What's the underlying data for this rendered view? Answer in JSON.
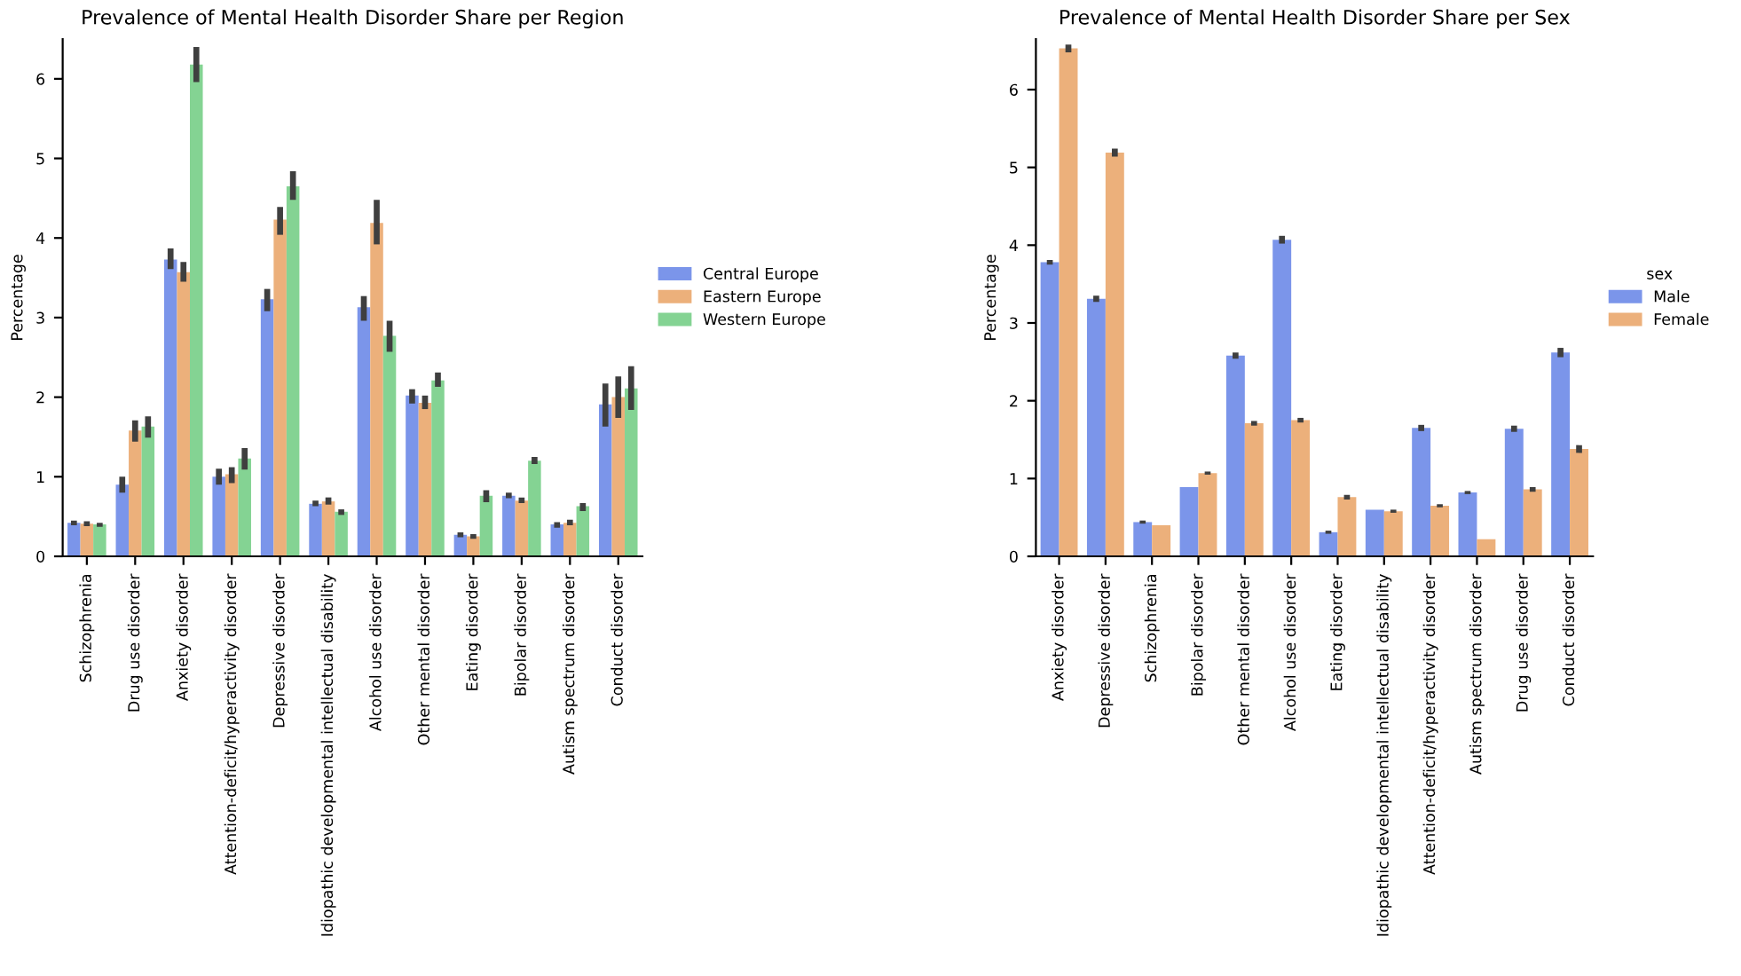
{
  "chart_data": [
    {
      "type": "bar",
      "title": "Prevalence of Mental Health Disorder Share per Region",
      "ylabel": "Percentage",
      "categories": [
        "Schizophrenia",
        "Drug use disorder",
        "Anxiety disorder",
        "Attention-deficit/hyperactivity disorder",
        "Depressive disorder",
        "Idiopathic developmental intellectual disability",
        "Alcohol use disorder",
        "Other mental disorder",
        "Eating disorder",
        "Bipolar disorder",
        "Autism spectrum disorder",
        "Conduct disorder"
      ],
      "series": [
        {
          "name": "Central Europe",
          "color": "#7b95ea",
          "values": [
            0.42,
            0.9,
            3.73,
            1.0,
            3.23,
            0.66,
            3.13,
            2.02,
            0.27,
            0.76,
            0.4,
            1.91
          ],
          "errors": [
            [
              0.39,
              0.45
            ],
            [
              0.8,
              1.0
            ],
            [
              3.61,
              3.87
            ],
            [
              0.9,
              1.1
            ],
            [
              3.08,
              3.36
            ],
            [
              0.63,
              0.7
            ],
            [
              2.96,
              3.27
            ],
            [
              1.92,
              2.1
            ],
            [
              0.24,
              0.3
            ],
            [
              0.73,
              0.8
            ],
            [
              0.36,
              0.43
            ],
            [
              1.63,
              2.17
            ]
          ]
        },
        {
          "name": "Eastern Europe",
          "color": "#ecb07b",
          "values": [
            0.41,
            1.58,
            3.57,
            1.03,
            4.23,
            0.69,
            4.19,
            1.93,
            0.25,
            0.7,
            0.42,
            2.0
          ],
          "errors": [
            [
              0.38,
              0.44
            ],
            [
              1.44,
              1.71
            ],
            [
              3.45,
              3.7
            ],
            [
              0.92,
              1.12
            ],
            [
              4.04,
              4.39
            ],
            [
              0.65,
              0.74
            ],
            [
              3.92,
              4.48
            ],
            [
              1.85,
              2.02
            ],
            [
              0.22,
              0.28
            ],
            [
              0.67,
              0.74
            ],
            [
              0.39,
              0.46
            ],
            [
              1.74,
              2.26
            ]
          ]
        },
        {
          "name": "Western Europe",
          "color": "#84d393",
          "values": [
            0.4,
            1.63,
            6.18,
            1.23,
            4.65,
            0.56,
            2.77,
            2.21,
            0.76,
            1.2,
            0.63,
            2.11
          ],
          "errors": [
            [
              0.37,
              0.42
            ],
            [
              1.49,
              1.76
            ],
            [
              5.96,
              6.4
            ],
            [
              1.09,
              1.36
            ],
            [
              4.48,
              4.84
            ],
            [
              0.52,
              0.59
            ],
            [
              2.57,
              2.96
            ],
            [
              2.13,
              2.31
            ],
            [
              0.68,
              0.83
            ],
            [
              1.16,
              1.25
            ],
            [
              0.57,
              0.67
            ],
            [
              1.84,
              2.39
            ]
          ]
        }
      ],
      "ylim": [
        0,
        6.5
      ],
      "yticks": [
        0,
        1,
        2,
        3,
        4,
        5,
        6
      ],
      "grid": false,
      "legend": "right"
    },
    {
      "type": "bar",
      "title": "Prevalence of Mental Health Disorder Share per Sex",
      "ylabel": "Percentage",
      "legend_title": "sex",
      "categories": [
        "Anxiety disorder",
        "Depressive disorder",
        "Schizophrenia",
        "Bipolar disorder",
        "Other mental disorder",
        "Alcohol use disorder",
        "Eating disorder",
        "Idiopathic developmental intellectual disability",
        "Attention-deficit/hyperactivity disorder",
        "Autism spectrum disorder",
        "Drug use disorder",
        "Conduct disorder"
      ],
      "series": [
        {
          "name": "Male",
          "color": "#7b95ea",
          "values": [
            3.78,
            3.31,
            0.44,
            0.89,
            2.58,
            4.07,
            0.31,
            0.6,
            1.65,
            0.82,
            1.64,
            2.62
          ],
          "errors": [
            0.03,
            0.04,
            0.02,
            null,
            0.04,
            0.05,
            0.02,
            null,
            0.04,
            0.02,
            0.04,
            0.06
          ]
        },
        {
          "name": "Female",
          "color": "#ecb07b",
          "values": [
            6.53,
            5.19,
            0.4,
            1.07,
            1.71,
            1.75,
            0.76,
            0.58,
            0.65,
            0.22,
            0.86,
            1.38
          ],
          "errors": [
            0.05,
            0.05,
            null,
            0.02,
            0.03,
            0.03,
            0.03,
            0.02,
            0.02,
            null,
            0.03,
            0.05
          ]
        }
      ],
      "ylim": [
        0,
        6.65
      ],
      "yticks": [
        0,
        1,
        2,
        3,
        4,
        5,
        6
      ],
      "grid": false,
      "legend": "right"
    }
  ]
}
